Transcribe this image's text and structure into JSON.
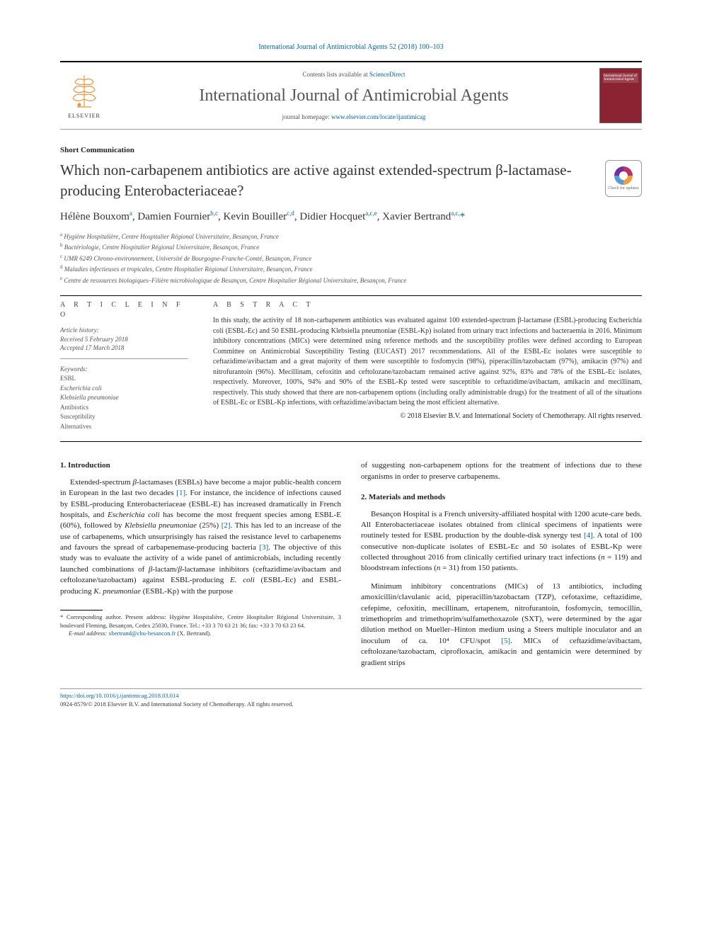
{
  "citation": "International Journal of Antimicrobial Agents 52 (2018) 100–103",
  "header": {
    "contents_prefix": "Contents lists available at ",
    "contents_link": "ScienceDirect",
    "journal": "International Journal of Antimicrobial Agents",
    "homepage_prefix": "journal homepage: ",
    "homepage_link": "www.elsevier.com/locate/ijantimicag",
    "publisher": "ELSEVIER",
    "cover_text": "International Journal of Antimicrobial Agents"
  },
  "article_type": "Short Communication",
  "title": "Which non-carbapenem antibiotics are active against extended-spectrum β-lactamase-producing Enterobacteriaceae?",
  "check_updates": "Check for updates",
  "authors_html": "Hélène Bouxom<sup>a</sup>, Damien Fournier<sup>b,c</sup>, Kevin Bouiller<sup>c,d</sup>, Didier Hocquet<sup>a,c,e</sup>, Xavier Bertrand<sup>a,c,</sup><span class='star'>*</span>",
  "affiliations": [
    "a Hygiène Hospitalière, Centre Hospitalier Régional Universitaire, Besançon, France",
    "b Bactériologie, Centre Hospitalier Régional Universitaire, Besançon, France",
    "c UMR 6249 Chrono-environnement, Université de Bourgogne-Franche-Comté, Besançon, France",
    "d Maladies infectieuses et tropicales, Centre Hospitalier Régional Universitaire, Besançon, France",
    "e Centre de ressources biologiques–Filière microbiologique de Besançon, Centre Hospitalier Régional Universitaire, Besançon, France"
  ],
  "info_heading": "A R T I C L E   I N F O",
  "abstract_heading": "A B S T R A C T",
  "history": {
    "lab": "Article history:",
    "received": "Received 5 February 2018",
    "accepted": "Accepted 17 March 2018"
  },
  "keywords_lab": "Keywords:",
  "keywords": [
    "ESBL",
    "Escherichia coli",
    "Klebsiella pneumoniae",
    "Antibiotics",
    "Susceptibility",
    "Alternatives"
  ],
  "keywords_italic": [
    false,
    true,
    true,
    false,
    false,
    false
  ],
  "abstract": "In this study, the activity of 18 non-carbapenem antibiotics was evaluated against 100 extended-spectrum β-lactamase (ESBL)-producing Escherichia coli (ESBL-Ec) and 50 ESBL-producing Klebsiella pneumoniae (ESBL-Kp) isolated from urinary tract infections and bacteraemia in 2016. Minimum inhibitory concentrations (MICs) were determined using reference methods and the susceptibility profiles were defined according to European Committee on Antimicrobial Susceptibility Testing (EUCAST) 2017 recommendations. All of the ESBL-Ec isolates were susceptible to ceftazidime/avibactam and a great majority of them were susceptible to fosfomycin (98%), piperacillin/tazobactam (97%), amikacin (97%) and nitrofurantoin (96%). Mecillinam, cefoxitin and ceftolozane/tazobactam remained active against 92%, 83% and 78% of the ESBL-Ec isolates, respectively. Moreover, 100%, 94% and 90% of the ESBL-Kp tested were susceptible to ceftazidime/avibactam, amikacin and mecillinam, respectively. This study showed that there are non-carbapenem options (including orally administrable drugs) for the treatment of all of the situations of ESBL-Ec or ESBL-Kp infections, with ceftazidime/avibactam being the most efficient alternative.",
  "copyright_line": "© 2018 Elsevier B.V. and International Society of Chemotherapy. All rights reserved.",
  "sections": {
    "intro_h": "1. Introduction",
    "intro_p1": "Extended-spectrum β-lactamases (ESBLs) have become a major public-health concern in European in the last two decades [1]. For instance, the incidence of infections caused by ESBL-producing Enterobacteriaceae (ESBL-E) has increased dramatically in French hospitals, and Escherichia coli has become the most frequent species among ESBL-E (60%), followed by Klebsiella pneumoniae (25%) [2]. This has led to an increase of the use of carbapenems, which unsurprisingly has raised the resistance level to carbapenems and favours the spread of carbapenemase-producing bacteria [3]. The objective of this study was to evaluate the activity of a wide panel of antimicrobials, including recently launched combinations of β-lactam/β-lactamase inhibitors (ceftazidime/avibactam and ceftolozane/tazobactam) against ESBL-producing E. coli (ESBL-Ec) and ESBL-producing K. pneumoniae (ESBL-Kp) with the purpose",
    "cont1": "of suggesting non-carbapenem options for the treatment of infections due to these organisms in order to preserve carbapenems.",
    "mm_h": "2. Materials and methods",
    "mm_p1": "Besançon Hospital is a French university-affiliated hospital with 1200 acute-care beds. All Enterobacteriaceae isolates obtained from clinical specimens of inpatients were routinely tested for ESBL production by the double-disk synergy test [4]. A total of 100 consecutive non-duplicate isolates of ESBL-Ec and 50 isolates of ESBL-Kp were collected throughout 2016 from clinically certified urinary tract infections (n = 119) and bloodstream infections (n = 31) from 150 patients.",
    "mm_p2": "Minimum inhibitory concentrations (MICs) of 13 antibiotics, including amoxicillin/clavulanic acid, piperacillin/tazobactam (TZP), cefotaxime, ceftazidime, cefepime, cefoxitin, mecillinam, ertapenem, nitrofurantoin, fosfomycin, temocillin, trimethoprim and trimethoprim/sulfamethoxazole (SXT), were determined by the agar dilution method on Mueller–Hinton medium using a Steers multiple inoculator and an inoculum of ca. 10⁴ CFU/spot [5]. MICs of ceftazidime/avibactam, ceftolozane/tazobactam, ciprofloxacin, amikacin and gentamicin were determined by gradient strips"
  },
  "footnote": {
    "corresp": "* Corresponding author. Present address: Hygiène Hospitalière, Centre Hospitalier Régional Universitaire, 3 boulevard Fleming, Besançon, Cedex 25030, France. Tel.: +33 3 70 63 21 36; fax: +33 3 70 63 23 64.",
    "email_lab": "E-mail address:",
    "email": "xbertrand@chu-besancon.fr",
    "email_name": " (X. Bertrand)."
  },
  "bottom": {
    "doi": "https://doi.org/10.1016/j.ijantimicag.2018.03.014",
    "issn_line": "0924-8579/© 2018 Elsevier B.V. and International Society of Chemotherapy. All rights reserved."
  },
  "colors": {
    "link": "#0066a1",
    "cover": "#8b2332",
    "text": "#222"
  }
}
